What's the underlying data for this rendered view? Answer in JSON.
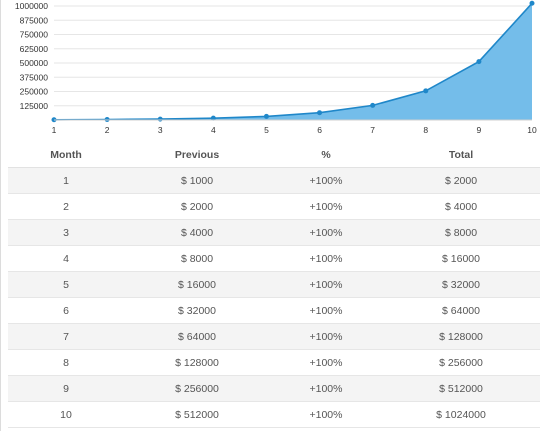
{
  "chart_data": {
    "type": "area",
    "x": [
      "1",
      "2",
      "3",
      "4",
      "5",
      "6",
      "7",
      "8",
      "9",
      "10"
    ],
    "values": [
      2000,
      4000,
      8000,
      16000,
      32000,
      64000,
      128000,
      256000,
      512000,
      1024000
    ],
    "y_ticks": [
      "125000",
      "250000",
      "375000",
      "500000",
      "625000",
      "750000",
      "875000",
      "1000000"
    ],
    "ylim": [
      0,
      1000000
    ],
    "grid": true,
    "colors": {
      "line": "#1f87c9",
      "fill": "#74bdea",
      "point": "#1f87c9",
      "grid": "#e6e6e6"
    }
  },
  "table": {
    "headers": {
      "month": "Month",
      "previous": "Previous",
      "percent": "%",
      "total": "Total"
    },
    "rows": [
      {
        "month": "1",
        "previous": "$ 1000",
        "percent": "+100%",
        "total": "$ 2000"
      },
      {
        "month": "2",
        "previous": "$ 2000",
        "percent": "+100%",
        "total": "$ 4000"
      },
      {
        "month": "3",
        "previous": "$ 4000",
        "percent": "+100%",
        "total": "$ 8000"
      },
      {
        "month": "4",
        "previous": "$ 8000",
        "percent": "+100%",
        "total": "$ 16000"
      },
      {
        "month": "5",
        "previous": "$ 16000",
        "percent": "+100%",
        "total": "$ 32000"
      },
      {
        "month": "6",
        "previous": "$ 32000",
        "percent": "+100%",
        "total": "$ 64000"
      },
      {
        "month": "7",
        "previous": "$ 64000",
        "percent": "+100%",
        "total": "$ 128000"
      },
      {
        "month": "8",
        "previous": "$ 128000",
        "percent": "+100%",
        "total": "$ 256000"
      },
      {
        "month": "9",
        "previous": "$ 256000",
        "percent": "+100%",
        "total": "$ 512000"
      },
      {
        "month": "10",
        "previous": "$ 512000",
        "percent": "+100%",
        "total": "$ 1024000"
      }
    ]
  }
}
